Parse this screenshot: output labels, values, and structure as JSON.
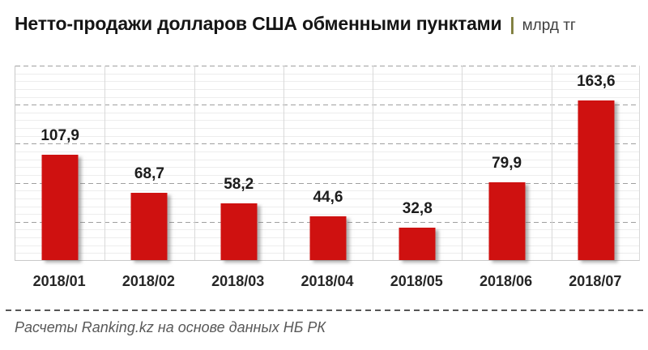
{
  "header": {
    "title": "Нетто-продажи долларов США обменными пунктами",
    "pipe": "|",
    "unit": "млрд тг"
  },
  "chart_data": {
    "type": "bar",
    "title": "Нетто-продажи долларов США обменными пунктами",
    "ylabel": "млрд тг",
    "xlabel": "",
    "categories": [
      "2018/01",
      "2018/02",
      "2018/03",
      "2018/04",
      "2018/05",
      "2018/06",
      "2018/07"
    ],
    "values": [
      107.9,
      68.7,
      58.2,
      44.6,
      32.8,
      79.9,
      163.6
    ],
    "value_labels": [
      "107,9",
      "68,7",
      "58,2",
      "44,6",
      "32,8",
      "79,9",
      "163,6"
    ],
    "ylim": [
      0,
      200
    ],
    "gridlines": {
      "horizontal_major_step": 40,
      "horizontal_minor_step": 8,
      "major_style": "dashed",
      "minor_style": "solid",
      "vertical": "category-boundaries"
    },
    "legend_position": "none",
    "bar_color": "#CF1110"
  },
  "footer": {
    "source": "Расчеты Ranking.kz на основе данных НБ РК"
  },
  "colors": {
    "bar": "#CF1110",
    "title": "#151515",
    "pipe": "#7d7c3a",
    "unit_text": "#3f3f3f",
    "value_label": "#1c1c1c",
    "axis_label": "#262626",
    "major_grid": "#a0a0a0",
    "minor_grid": "#ededed",
    "vertical_grid": "#d9d9d9",
    "footer_text": "#595959"
  }
}
